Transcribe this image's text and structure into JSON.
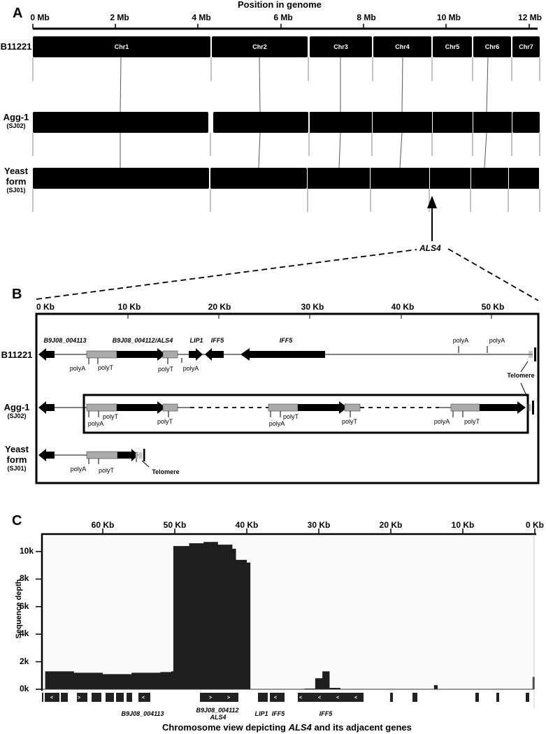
{
  "panel_a": {
    "letter": "A",
    "title": "Position in genome",
    "ticks": [
      "0 Mb",
      "2 Mb",
      "4 Mb",
      "6 Mb",
      "8 Mb",
      "10 Mb",
      "12 Mb"
    ],
    "rows": [
      {
        "name": "B11221",
        "sub": ""
      },
      {
        "name": "Agg-1",
        "sub": "(SJ02)"
      },
      {
        "name": "Yeast form",
        "sub": "(SJ01)"
      }
    ],
    "chromosomes": [
      "Chr1",
      "Chr2",
      "Chr3",
      "Chr4",
      "Chr5",
      "Chr6",
      "Chr7"
    ],
    "arrow_label": "ALS4"
  },
  "panel_b": {
    "letter": "B",
    "ticks": [
      "0 Kb",
      "10 Kb",
      "20 Kb",
      "30 Kb",
      "40 Kb",
      "50 Kb"
    ],
    "rows": [
      {
        "name": "B11221",
        "sub": ""
      },
      {
        "name": "Agg-1",
        "sub": "(SJ02)"
      },
      {
        "name": "Yeast form",
        "sub": "(SJ01)"
      }
    ],
    "gene_labels": [
      "B9J08_004113",
      "B9J08_004112/ALS4",
      "LIP1",
      "IFF5",
      "IFF5"
    ],
    "feature_labels": {
      "polyA": "polyA",
      "polyT": "polyT",
      "telomere": "Telomere"
    }
  },
  "panel_c": {
    "letter": "C",
    "caption_pre": "Chromosome view depicting ",
    "caption_gene": "ALS4",
    "caption_post": " and its adjacent genes",
    "gene_labels": {
      "g1": "B9J08_004113",
      "g2a": "B9J08_004112",
      "g2b": "ALS4",
      "g3": "LIP1",
      "g4": "IFF5",
      "g5": "IFF5"
    }
  },
  "chart_data": [
    {
      "type": "diagram",
      "title": "Position in genome",
      "xlabel": "Position in genome (Mb)",
      "ticks": [
        "0 Mb",
        "2 Mb",
        "4 Mb",
        "6 Mb",
        "8 Mb",
        "10 Mb",
        "12 Mb"
      ],
      "xlim": [
        0,
        12.3
      ],
      "strains": [
        "B11221",
        "Agg-1 (SJ02)",
        "Yeast form (SJ01)"
      ],
      "chromosome_bounds_mb_B11221": [
        [
          0,
          4.3
        ],
        [
          4.3,
          6.65
        ],
        [
          6.65,
          8.2
        ],
        [
          8.2,
          9.65
        ],
        [
          9.65,
          10.63
        ],
        [
          10.63,
          11.58
        ],
        [
          11.58,
          12.25
        ]
      ],
      "annotation": "ALS4 near start of Chr5 (~9.65 Mb) in Yeast form"
    },
    {
      "type": "diagram",
      "xlabel": "Kb",
      "ticks": [
        "0 Kb",
        "10 Kb",
        "20 Kb",
        "30 Kb",
        "40 Kb",
        "50 Kb"
      ],
      "xlim": [
        0,
        55
      ],
      "features": [
        "B9J08_004113",
        "B9J08_004112/ALS4",
        "LIP1",
        "IFF5",
        "IFF5",
        "polyA",
        "polyT",
        "Telomere"
      ]
    },
    {
      "type": "area",
      "xlabel": "Chromosome view depicting ALS4 and its adjacent genes",
      "ylabel": "Sequence depth",
      "x_ticks": [
        "60 Kb",
        "50 Kb",
        "40 Kb",
        "30 Kb",
        "20 Kb",
        "10 Kb",
        "0 Kb"
      ],
      "y_ticks": [
        "0k",
        "2k",
        "4k",
        "6k",
        "8k",
        "10k"
      ],
      "ylim": [
        0,
        11000
      ],
      "xlim_kb": [
        68,
        0
      ],
      "series": [
        {
          "name": "Sequence depth",
          "x_kb": [
            68,
            64,
            60,
            56,
            52,
            50.5,
            50.2,
            48,
            46,
            44,
            42,
            41.5,
            40,
            39.5,
            38,
            32,
            30.5,
            29.5,
            28.5,
            27,
            14,
            13.5,
            12,
            0.3,
            0
          ],
          "values": [
            1300,
            1200,
            1100,
            1200,
            1250,
            1300,
            10400,
            10600,
            10700,
            10500,
            10200,
            9400,
            9200,
            0,
            0,
            50,
            800,
            1300,
            100,
            0,
            300,
            0,
            0,
            900,
            900
          ]
        }
      ]
    }
  ]
}
